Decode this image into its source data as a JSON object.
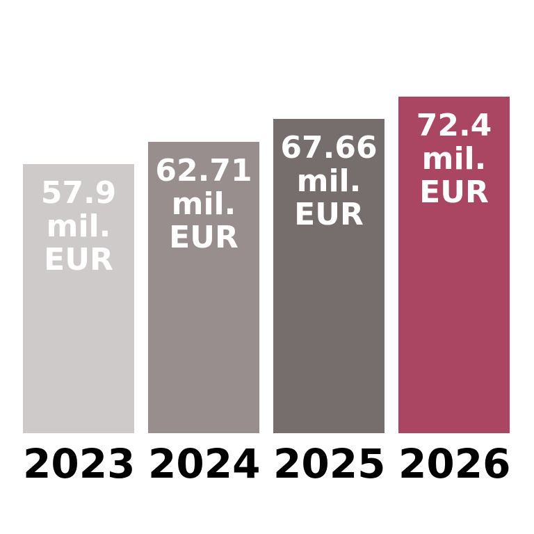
{
  "chart_data": {
    "type": "bar",
    "title": "",
    "xlabel": "",
    "ylabel": "",
    "unit": "mil. EUR",
    "categories": [
      "2023",
      "2024",
      "2025",
      "2026"
    ],
    "values": [
      57.9,
      62.71,
      67.66,
      72.4
    ],
    "value_labels": [
      [
        "57.9",
        "mil.",
        "EUR"
      ],
      [
        "62.71",
        "mil.",
        "EUR"
      ],
      [
        "67.66",
        "mil.",
        "EUR"
      ],
      [
        "72.4",
        "mil.",
        "EUR"
      ]
    ],
    "ylim": [
      0,
      72.4
    ],
    "grid": false,
    "legend": false,
    "bar_colors": [
      "#cecaca",
      "#988e8e",
      "#766d6d",
      "#aa4562"
    ],
    "value_label_color": "#ffffff",
    "category_label_color": "#000000",
    "background_color": "#ffffff"
  }
}
